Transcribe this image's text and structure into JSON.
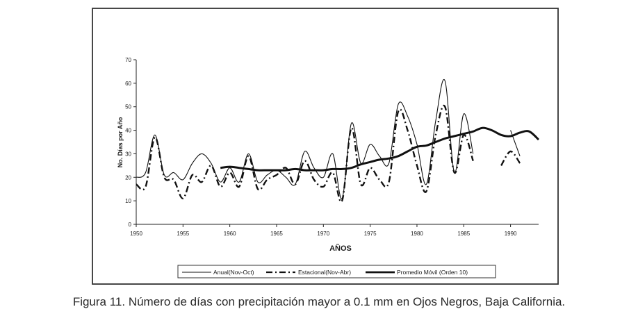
{
  "caption": "Figura 11. Número de días con precipitación mayor a 0.1 mm en Ojos Negros, Baja California.",
  "chart_data": {
    "type": "line",
    "title": "",
    "xlabel": "AÑOS",
    "ylabel": "No. Días por Año",
    "xlim": [
      1950,
      1993
    ],
    "ylim": [
      0,
      70
    ],
    "x_ticks": [
      1950,
      1955,
      1960,
      1965,
      1970,
      1975,
      1980,
      1985,
      1990
    ],
    "y_ticks": [
      0,
      10,
      20,
      30,
      40,
      50,
      60,
      70
    ],
    "grid": false,
    "legend_position": "bottom",
    "series": [
      {
        "name": "Anual(Nov-Oct)",
        "style": "thin",
        "x": [
          1950,
          1951,
          1952,
          1953,
          1954,
          1955,
          1956,
          1957,
          1958,
          1959,
          1960,
          1961,
          1962,
          1963,
          1964,
          1965,
          1966,
          1967,
          1968,
          1969,
          1970,
          1971,
          1972,
          1973,
          1974,
          1975,
          1976,
          1977,
          1978,
          1979,
          1980,
          1981,
          1982,
          1983,
          1984,
          1985,
          1986,
          null,
          1990,
          1991
        ],
        "values": [
          20,
          22,
          38,
          21,
          22,
          19,
          26,
          30,
          26,
          18,
          24,
          18,
          30,
          18,
          21,
          23,
          20,
          17,
          31,
          24,
          20,
          30,
          11,
          43,
          26,
          34,
          29,
          26,
          51,
          46,
          34,
          17,
          44,
          61,
          22,
          47,
          30,
          null,
          40,
          29
        ]
      },
      {
        "name": "Estacional(Nov-Abr)",
        "style": "dashed",
        "x": [
          1950,
          1951,
          1952,
          1953,
          1954,
          1955,
          1956,
          1957,
          1958,
          1959,
          1960,
          1961,
          1962,
          1963,
          1964,
          1965,
          1966,
          1967,
          1968,
          1969,
          1970,
          1971,
          1972,
          1973,
          1974,
          1975,
          1976,
          1977,
          1978,
          1979,
          1980,
          1981,
          1982,
          1983,
          1984,
          1985,
          1986,
          null,
          1989,
          1990,
          1991
        ],
        "values": [
          17,
          16,
          37,
          20,
          19,
          11,
          21,
          18,
          25,
          16,
          22,
          16,
          29,
          15,
          19,
          21,
          24,
          17,
          27,
          19,
          16,
          22,
          10,
          41,
          17,
          24,
          19,
          18,
          48,
          40,
          25,
          14,
          38,
          50,
          22,
          38,
          27,
          null,
          25,
          31,
          26
        ]
      },
      {
        "name": "Promedio Móvil (Orden 10)",
        "style": "thick",
        "x": [
          1959,
          1960,
          1961,
          1962,
          1963,
          1964,
          1965,
          1966,
          1967,
          1968,
          1969,
          1970,
          1971,
          1972,
          1973,
          1974,
          1975,
          1976,
          1977,
          1978,
          1979,
          1980,
          1981,
          1982,
          1983,
          1984,
          1985,
          1986,
          1987,
          1988,
          1989,
          1990,
          1991,
          1992,
          1993
        ],
        "values": [
          24,
          24.5,
          24,
          23.5,
          23,
          23,
          23,
          23,
          23.5,
          23,
          23,
          23,
          23.5,
          23.5,
          24,
          25.5,
          26.5,
          27.5,
          28,
          29,
          31,
          33,
          33.5,
          35,
          36.5,
          37.5,
          38.5,
          39.5,
          41,
          40,
          38,
          37.5,
          39,
          39.5,
          36
        ]
      }
    ]
  }
}
